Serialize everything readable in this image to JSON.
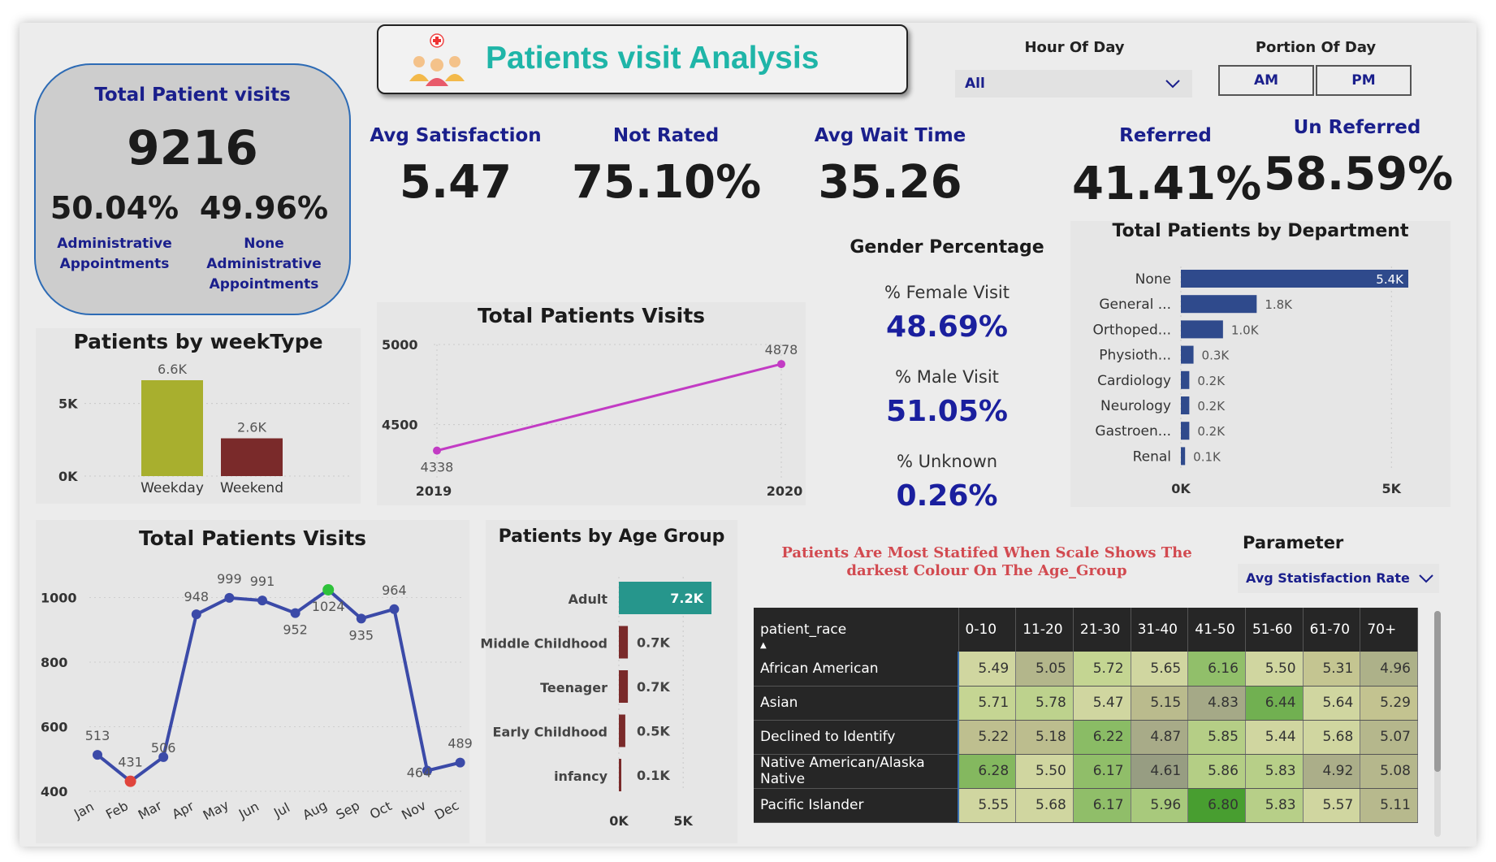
{
  "header": {
    "title": "Patients visit Analysis",
    "logo_icon": "patients-group-icon"
  },
  "total_card": {
    "title": "Total Patient visits",
    "value": "9216",
    "admin_pct": "50.04%",
    "admin_label_1": "Administrative",
    "admin_label_2": "Appointments",
    "nonadmin_pct": "49.96%",
    "nonadmin_label_1": "None Administrative",
    "nonadmin_label_2": "Appointments"
  },
  "slicers": {
    "hour_label": "Hour Of Day",
    "hour_value": "All",
    "portion_label": "Portion Of Day",
    "am": "AM",
    "pm": "PM"
  },
  "kpis": {
    "avg_satisfaction_label": "Avg Satisfaction",
    "avg_satisfaction": "5.47",
    "not_rated_label": "Not Rated",
    "not_rated": "75.10%",
    "avg_wait_label": "Avg Wait Time",
    "avg_wait": "35.26",
    "referred_label": "Referred",
    "referred": "41.41%",
    "unreferred_label": "Un Referred",
    "unreferred": "58.59%"
  },
  "gender": {
    "title": "Gender Percentage",
    "female_label": "% Female Visit",
    "female": "48.69%",
    "male_label": "% Male Visit",
    "male": "51.05%",
    "unknown_label": "% Unknown",
    "unknown": "0.26%"
  },
  "note": {
    "line1": "Patients Are Most Statifed When Scale Shows The",
    "line2": "darkest Colour On The Age_Group"
  },
  "parameter": {
    "label": "Parameter",
    "value": "Avg Statisfaction Rate"
  },
  "colors": {
    "navy": "#1a1f8c",
    "teal": "#1fb5a8",
    "weekday": "#a8af2e",
    "weekend": "#7a2a2a",
    "line_pink": "#c23bc4",
    "line_blue": "#3b4aa8",
    "dept_bar": "#2f4a8c",
    "adult_bar": "#26968c",
    "age_bar": "#7a2a2a"
  },
  "chart_data": [
    {
      "id": "weektype",
      "type": "bar",
      "title": "Patients by weekType",
      "categories": [
        "Weekday",
        "Weekend"
      ],
      "values": [
        6600,
        2600
      ],
      "data_labels": [
        "6.6K",
        "2.6K"
      ],
      "y_ticks": [
        "5K",
        "0K"
      ],
      "ylim": [
        0,
        6600
      ]
    },
    {
      "id": "yearly",
      "type": "line",
      "title": "Total Patients Visits",
      "x": [
        "2019",
        "2020"
      ],
      "values": [
        4338,
        4878
      ],
      "y_ticks": [
        "5000",
        "4500"
      ],
      "ylim": [
        4250,
        5000
      ]
    },
    {
      "id": "department",
      "type": "bar",
      "title": "Total Patients by Department",
      "categories": [
        "None",
        "General ...",
        "Orthoped...",
        "Physioth...",
        "Cardiology",
        "Neurology",
        "Gastroen...",
        "Renal"
      ],
      "values": [
        5400,
        1800,
        1000,
        300,
        200,
        200,
        200,
        100
      ],
      "data_labels": [
        "5.4K",
        "1.8K",
        "1.0K",
        "0.3K",
        "0.2K",
        "0.2K",
        "0.2K",
        "0.1K"
      ],
      "x_ticks": [
        "0K",
        "5K"
      ],
      "xlim": [
        0,
        5400
      ]
    },
    {
      "id": "monthly",
      "type": "line",
      "title": "Total Patients Visits",
      "x": [
        "Jan",
        "Feb",
        "Mar",
        "Apr",
        "May",
        "Jun",
        "Jul",
        "Aug",
        "Sep",
        "Oct",
        "Nov",
        "Dec"
      ],
      "values": [
        513,
        431,
        506,
        948,
        999,
        991,
        952,
        1024,
        935,
        964,
        464,
        489
      ],
      "y_ticks": [
        "1000",
        "800",
        "600",
        "400"
      ],
      "ylim": [
        400,
        1100
      ],
      "min_marker": "Feb",
      "max_marker": "Aug"
    },
    {
      "id": "agegroup",
      "type": "bar",
      "title": "Patients by Age Group",
      "categories": [
        "Adult",
        "Middle Childhood",
        "Teenager",
        "Early Childhood",
        "infancy"
      ],
      "values": [
        7200,
        700,
        700,
        500,
        100
      ],
      "data_labels": [
        "7.2K",
        "0.7K",
        "0.7K",
        "0.5K",
        "0.1K"
      ],
      "x_ticks": [
        "0K",
        "5K"
      ],
      "xlim": [
        0,
        7200
      ]
    },
    {
      "id": "matrix",
      "type": "heatmap",
      "row_header": "patient_race",
      "columns": [
        "0-10",
        "11-20",
        "21-30",
        "31-40",
        "41-50",
        "51-60",
        "61-70",
        "70+"
      ],
      "rows": [
        {
          "name": "African American",
          "values": [
            "5.49",
            "5.05",
            "5.72",
            "5.65",
            "6.16",
            "5.50",
            "5.31",
            "4.96"
          ]
        },
        {
          "name": "Asian",
          "values": [
            "5.71",
            "5.78",
            "5.47",
            "5.15",
            "4.83",
            "6.44",
            "5.64",
            "5.29"
          ]
        },
        {
          "name": "Declined to Identify",
          "values": [
            "5.22",
            "5.18",
            "6.22",
            "4.87",
            "5.85",
            "5.44",
            "5.68",
            "5.07"
          ]
        },
        {
          "name": "Native American/Alaska Native",
          "values": [
            "6.28",
            "5.50",
            "6.17",
            "4.61",
            "5.86",
            "5.83",
            "4.92",
            "5.08"
          ]
        },
        {
          "name": "Pacific Islander",
          "values": [
            "5.55",
            "5.68",
            "6.17",
            "5.96",
            "6.80",
            "5.83",
            "5.57",
            "5.11"
          ]
        }
      ],
      "color_scale": {
        "low": 4.6,
        "high": 6.8
      }
    }
  ]
}
